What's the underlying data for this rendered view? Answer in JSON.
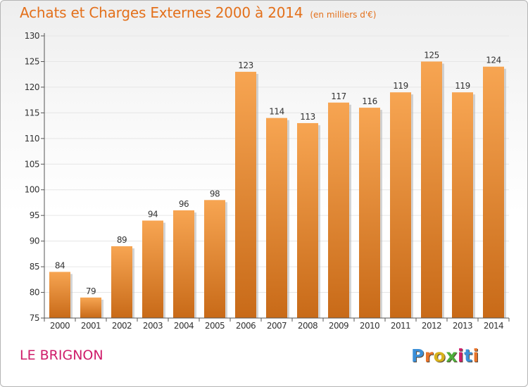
{
  "header": {
    "title": "Achats et Charges Externes 2000 à 2014",
    "unit": "(en milliers d'€)"
  },
  "footer": {
    "commune": "LE BRIGNON",
    "logo_text": "Proxiti",
    "logo_colors": [
      "#3b8fd8",
      "#e8742b",
      "#d8b21c",
      "#4fae3c",
      "#cf1c6a",
      "#3b8fd8",
      "#e8742b"
    ]
  },
  "colors": {
    "title": "#e3701b",
    "commune": "#cf1c6a",
    "bar_light": "#f7a552",
    "bar_dark": "#c86a18",
    "bar_shadow": "#b0b0b0",
    "axis": "#555555",
    "grid": "#e6e6e6",
    "text": "#333333"
  },
  "chart_data": {
    "type": "bar",
    "categories": [
      "2000",
      "2001",
      "2002",
      "2003",
      "2004",
      "2005",
      "2006",
      "2007",
      "2008",
      "2009",
      "2010",
      "2011",
      "2012",
      "2013",
      "2014"
    ],
    "values": [
      84,
      79,
      89,
      94,
      96,
      98,
      123,
      114,
      113,
      117,
      116,
      119,
      125,
      119,
      124
    ],
    "ylim": [
      75,
      130
    ],
    "yticks": [
      75,
      80,
      85,
      90,
      95,
      100,
      105,
      110,
      115,
      120,
      125,
      130
    ],
    "grid": true,
    "legend": "none",
    "data_labels": true
  }
}
